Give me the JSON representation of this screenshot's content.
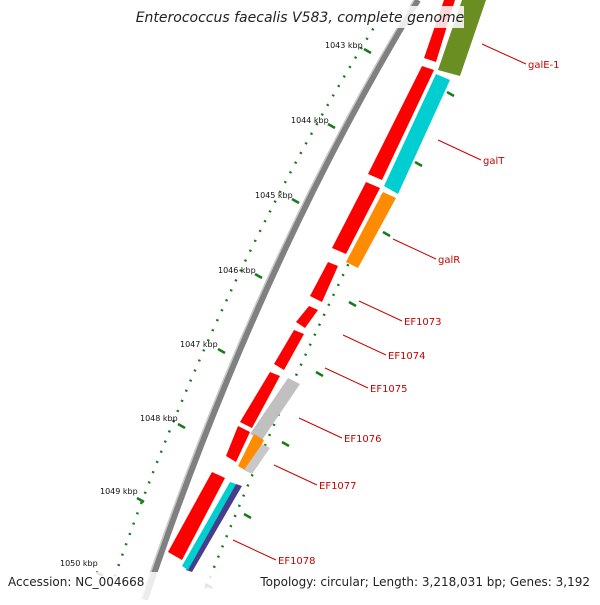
{
  "title": "Enterococcus faecalis V583, complete genome",
  "accession_label": "Accession: NC_004668",
  "topology_label": "Topology: circular; Length: 3,218,031 bp; Genes: 3,192",
  "kbp_ticks": [
    "1043 kbp",
    "1044 kbp",
    "1045 kbp",
    "1046 kbp",
    "1047 kbp",
    "1048 kbp",
    "1049 kbp",
    "1050 kbp"
  ],
  "gene_labels": [
    "galE-1",
    "galT",
    "galR",
    "EF1073",
    "EF1074",
    "EF1075",
    "EF1076",
    "EF1077",
    "EF1078"
  ],
  "colors": {
    "cds_red": "#ff0000",
    "olive": "#6b8e23",
    "cyan": "#00ced1",
    "orange": "#ff8c00",
    "gray": "#bebebe",
    "purple": "#483d8b",
    "tick_green": "#1a7a1a",
    "label_red": "#cc0000",
    "backbone": "#888888"
  }
}
